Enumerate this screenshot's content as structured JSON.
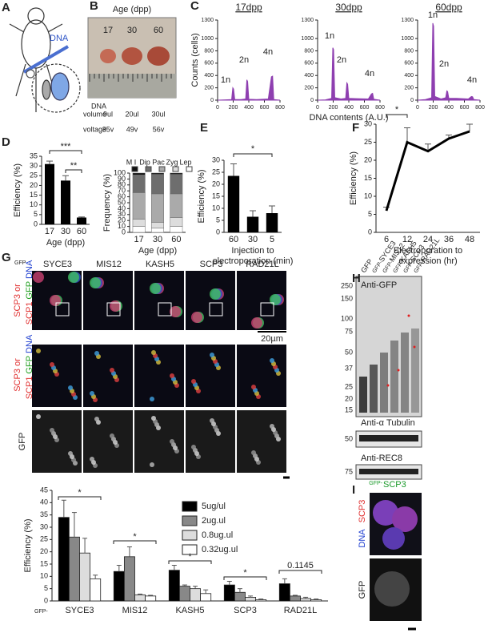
{
  "panel_labels": [
    "A",
    "B",
    "C",
    "D",
    "E",
    "F",
    "G",
    "H",
    "I"
  ],
  "panel_a": {
    "label": "DNA"
  },
  "panel_b": {
    "title": "Age (dpp)",
    "ages": [
      "17",
      "30",
      "60"
    ],
    "row_labels": [
      "DNA",
      "volume",
      "voltage"
    ],
    "volume": [
      "9ul",
      "20ul",
      "30ul"
    ],
    "voltage": [
      "35v",
      "49v",
      "56v"
    ]
  },
  "chart_data": [
    {
      "type": "area",
      "title": "17dpp",
      "ylabel": "Counts (cells)",
      "color": "#8e3fb0",
      "x": [
        0,
        100,
        180,
        195,
        205,
        220,
        300,
        360,
        375,
        385,
        400,
        500,
        650,
        690,
        705,
        720,
        800
      ],
      "values": [
        0,
        5,
        10,
        200,
        180,
        10,
        10,
        20,
        330,
        300,
        15,
        10,
        20,
        380,
        390,
        10,
        0
      ],
      "xlim": [
        0,
        800
      ],
      "xticks": [
        0,
        200,
        400,
        600,
        800
      ],
      "ylim": [
        0,
        1300
      ],
      "yticks": [
        0,
        200,
        400,
        600,
        800,
        1000,
        1300
      ],
      "annotations": [
        "1n",
        "2n",
        "4n"
      ]
    },
    {
      "type": "area",
      "title": "30dpp",
      "xlabel": "DNA contents (A.U.)",
      "color": "#8e3fb0",
      "x": [
        0,
        100,
        180,
        195,
        205,
        220,
        300,
        360,
        375,
        385,
        400,
        500,
        650,
        690,
        705,
        720,
        800
      ],
      "values": [
        0,
        5,
        30,
        850,
        820,
        40,
        20,
        30,
        280,
        260,
        30,
        25,
        20,
        100,
        110,
        15,
        0
      ],
      "xlim": [
        0,
        800
      ],
      "xticks": [
        0,
        200,
        400,
        600,
        800
      ],
      "ylim": [
        0,
        1300
      ],
      "yticks": [
        0,
        200,
        400,
        600,
        800,
        1000,
        1300
      ],
      "annotations": [
        "1n",
        "2n",
        "4n"
      ]
    },
    {
      "type": "area",
      "title": "60dpp",
      "color": "#8e3fb0",
      "x": [
        0,
        100,
        180,
        195,
        205,
        220,
        300,
        360,
        375,
        385,
        400,
        500,
        650,
        690,
        705,
        720,
        800
      ],
      "values": [
        0,
        10,
        40,
        1250,
        1200,
        60,
        20,
        40,
        150,
        140,
        30,
        30,
        20,
        60,
        55,
        10,
        0
      ],
      "xlim": [
        0,
        800
      ],
      "xticks": [
        0,
        200,
        400,
        600,
        800
      ],
      "ylim": [
        0,
        1300
      ],
      "yticks": [
        0,
        200,
        400,
        600,
        800,
        1000,
        1300
      ],
      "annotations": [
        "1n",
        "2n",
        "4n"
      ]
    },
    {
      "type": "bar",
      "ylabel": "Efficiency (%)",
      "xlabel": [
        "Age (dpp)"
      ],
      "color": "#000000",
      "categories": [
        "17",
        "30",
        "60"
      ],
      "values": [
        31,
        22.5,
        3.5
      ],
      "errors": [
        1.5,
        2.5,
        0.3
      ],
      "ylim": [
        0,
        35
      ],
      "yticks": [
        0,
        5,
        10,
        15,
        20,
        25,
        30,
        35
      ],
      "annotations": [
        "***",
        "**"
      ]
    },
    {
      "type": "stacked_bar",
      "ylabel": "Frequency (%)",
      "xlabel": [
        "Age (dpp)"
      ],
      "categories": [
        "17",
        "30",
        "60"
      ],
      "series": [
        {
          "name": "Lep",
          "color": "#ffffff",
          "values": [
            10,
            7,
            10
          ]
        },
        {
          "name": "Zyg",
          "color": "#dddddd",
          "values": [
            12,
            10,
            15
          ]
        },
        {
          "name": "Pac",
          "color": "#aaaaaa",
          "values": [
            45,
            48,
            40
          ]
        },
        {
          "name": "Dip",
          "color": "#6e6e6e",
          "values": [
            30,
            33,
            33
          ]
        },
        {
          "name": "M I",
          "color": "#111111",
          "values": [
            3,
            2,
            2
          ]
        }
      ],
      "ylim": [
        0,
        100
      ],
      "yticks": [
        0,
        10,
        20,
        30,
        40,
        50,
        60,
        70,
        80,
        90,
        100
      ]
    },
    {
      "type": "bar",
      "ylabel": "Efficiency (%)",
      "xlabel": [
        "Injection to",
        "electroporation (min)"
      ],
      "color": "#000000",
      "categories": [
        "60",
        "30",
        "5"
      ],
      "values": [
        23.5,
        6.5,
        8
      ],
      "errors": [
        5,
        2.5,
        3
      ],
      "ylim": [
        0,
        30
      ],
      "yticks": [
        0,
        5,
        10,
        15,
        20,
        25,
        30
      ],
      "annotations": [
        "*"
      ]
    },
    {
      "type": "line",
      "ylabel": "Efficiency (%)",
      "xlabel": [
        "Electroporation to",
        "expression (hr)"
      ],
      "color": "#000000",
      "categories": [
        "6",
        "12",
        "24",
        "36",
        "48"
      ],
      "values": [
        6,
        25,
        22.5,
        26,
        28
      ],
      "errors": [
        1,
        4,
        2,
        1,
        2
      ],
      "ylim": [
        0,
        30
      ],
      "yticks": [
        0,
        5,
        10,
        15,
        20,
        25,
        30
      ],
      "annotations": [
        "*"
      ]
    },
    {
      "type": "grouped_bar",
      "ylabel": "Efficiency (%)",
      "category_prefix": "GFP-",
      "categories": [
        "SYCE3",
        "MIS12",
        "KASH5",
        "SCP3",
        "RAD21L"
      ],
      "series": [
        {
          "name": "5ug/ul",
          "color": "#000000",
          "values": [
            34,
            12,
            12.5,
            6.5,
            7
          ],
          "errors": [
            7,
            2.5,
            2,
            1.5,
            2
          ]
        },
        {
          "name": "2ug.ul",
          "color": "#888888",
          "values": [
            26,
            18,
            6,
            3.5,
            2
          ],
          "errors": [
            10,
            4,
            0.5,
            1.5,
            0.3
          ]
        },
        {
          "name": "0.8ug.ul",
          "color": "#dddddd",
          "values": [
            19.5,
            2.5,
            5,
            1.5,
            1
          ],
          "errors": [
            6,
            0.3,
            1,
            0.5,
            0.5
          ]
        },
        {
          "name": "0.32ug.ul",
          "color": "#ffffff",
          "values": [
            9,
            2,
            3,
            0.5,
            0.5
          ],
          "errors": [
            1.5,
            0.3,
            1.5,
            0.3,
            0.3
          ]
        }
      ],
      "ylim": [
        0,
        45
      ],
      "yticks": [
        0,
        5,
        10,
        15,
        20,
        25,
        30,
        35,
        40,
        45
      ],
      "annotations": [
        "*",
        "*",
        "*",
        "*",
        "0.1145"
      ]
    }
  ],
  "panel_g": {
    "prefix": "GFP-",
    "columns": [
      "SYCE3",
      "MIS12",
      "KASH5",
      "SCP3",
      "RAD21L"
    ],
    "side_labels": [
      "SCP3 or",
      "SCP1",
      "GFP",
      "DNA"
    ],
    "bottom_label": "GFP",
    "scale": "20µm"
  },
  "panel_h": {
    "prefix": "GFP-",
    "lanes": [
      "GFP",
      "SYCE3",
      "MIS12",
      "KASH5",
      "SCP3",
      "RAD21L"
    ],
    "markers": [
      "250",
      "150",
      "100",
      "75",
      "50",
      "37",
      "25",
      "20",
      "15"
    ],
    "blots": [
      {
        "label": "Anti-GFP"
      },
      {
        "label": "Anti-α Tubulin",
        "marker": "50"
      },
      {
        "label": "Anti-REC8",
        "marker": "75"
      }
    ]
  },
  "panel_i": {
    "prefix": "GFP-",
    "title": "SCP3",
    "labels": [
      "DNA",
      "SCP3",
      "GFP"
    ]
  }
}
